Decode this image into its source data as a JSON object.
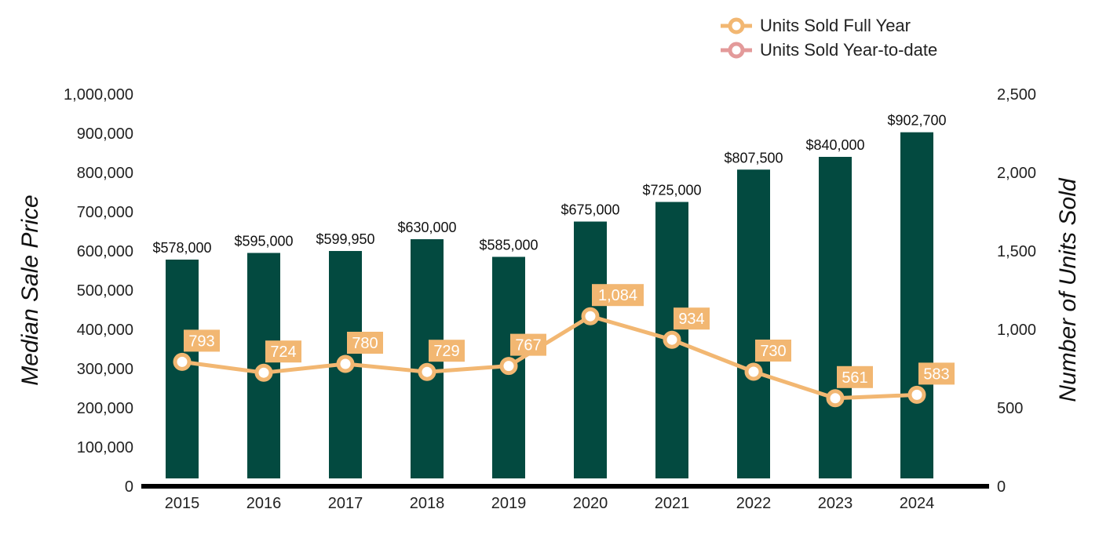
{
  "chart_data": {
    "type": "bar",
    "categories": [
      "2015",
      "2016",
      "2017",
      "2018",
      "2019",
      "2020",
      "2021",
      "2022",
      "2023",
      "2024"
    ],
    "series": [
      {
        "type": "bar",
        "axis": "left",
        "values": [
          578000,
          595000,
          599950,
          630000,
          585000,
          675000,
          725000,
          807500,
          840000,
          902700
        ],
        "labels": [
          "$578,000",
          "$595,000",
          "$599,950",
          "$630,000",
          "$585,000",
          "$675,000",
          "$725,000",
          "$807,500",
          "$840,000",
          "$902,700"
        ]
      },
      {
        "type": "line",
        "axis": "right",
        "name": "Units Sold Full Year",
        "values": [
          793,
          724,
          780,
          729,
          767,
          1084,
          934,
          730,
          561,
          583
        ],
        "labels": [
          "793",
          "724",
          "780",
          "729",
          "767",
          "1,084",
          "934",
          "730",
          "561",
          "583"
        ]
      }
    ],
    "legend": [
      {
        "name": "Units Sold Full Year",
        "color": "#f2b772"
      },
      {
        "name": "Units Sold Year-to-date",
        "color": "#e39a9a"
      }
    ],
    "legend_position": "top-right",
    "ylabel": "Median Sale Price",
    "ylabel_right": "Number of Units Sold",
    "ylim": [
      0,
      1000000
    ],
    "ylim_right": [
      0,
      2500
    ],
    "yticks": [
      "0",
      "100,000",
      "200,000",
      "300,000",
      "400,000",
      "500,000",
      "600,000",
      "700,000",
      "800,000",
      "900,000",
      "1,000,000"
    ],
    "yticks_right": [
      "0",
      "500",
      "1,000",
      "1,500",
      "2,000",
      "2,500"
    ],
    "grid": false,
    "colors": {
      "bar": "#034a40",
      "line": "#f2b772",
      "ytd": "#e39a9a",
      "axis": "#000000"
    }
  }
}
